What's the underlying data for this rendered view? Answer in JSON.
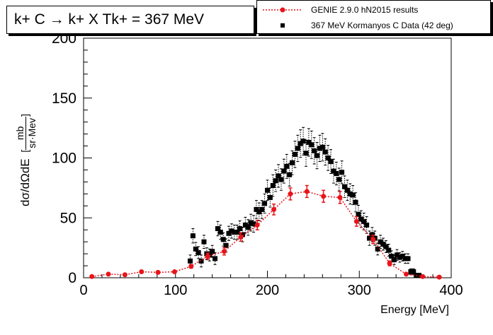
{
  "chart_data": {
    "type": "scatter",
    "title": "k+ C → k+ X Tk+ = 367 MeV",
    "xlabel": "Energy [MeV]",
    "ylabel": "dσ/dΩdE [mb/sr·Mev]",
    "xlim": [
      0,
      400
    ],
    "ylim": [
      0,
      200
    ],
    "x_ticks": [
      "0",
      "100",
      "200",
      "300",
      "400"
    ],
    "y_ticks": [
      "0",
      "50",
      "100",
      "150",
      "200"
    ],
    "grid": false,
    "legend_position": "top-right",
    "series": [
      {
        "name": "GENIE 2.9.0 hN2015 results",
        "color": "#e8141a",
        "style": "dotted-line-with-markers",
        "x": [
          9,
          27,
          45,
          63,
          81,
          99,
          117,
          135,
          153,
          171,
          189,
          207,
          225,
          243,
          261,
          279,
          297,
          315,
          333,
          351,
          369,
          387
        ],
        "y": [
          1,
          3,
          2.5,
          5,
          4.5,
          5,
          9.5,
          18,
          22,
          34,
          44,
          57,
          70,
          72,
          68,
          67,
          47,
          32,
          12,
          3,
          1,
          0.5
        ],
        "err": [
          0,
          0,
          0,
          0,
          0,
          0,
          1.5,
          2.5,
          3,
          3.5,
          4,
          4.5,
          5,
          5,
          5,
          5,
          4,
          3.5,
          2,
          1,
          0,
          0
        ]
      },
      {
        "name": "367 MeV Kormanyos C Data (42 deg)",
        "color": "#000000",
        "style": "square-markers",
        "x": [
          116,
          119,
          122,
          125,
          128,
          131,
          134,
          137,
          140,
          143,
          146,
          149,
          152,
          155,
          158,
          161,
          164,
          167,
          170,
          173,
          176,
          179,
          182,
          185,
          188,
          191,
          194,
          197,
          200,
          203,
          206,
          209,
          212,
          215,
          218,
          221,
          224,
          227,
          230,
          233,
          236,
          239,
          242,
          245,
          248,
          251,
          254,
          257,
          260,
          263,
          266,
          269,
          272,
          275,
          278,
          281,
          284,
          287,
          290,
          293,
          296,
          299,
          302,
          305,
          308,
          311,
          314,
          317,
          320,
          323,
          326,
          329,
          332,
          335,
          338,
          341,
          344,
          347,
          350,
          353,
          356,
          359,
          362,
          365
        ],
        "y": [
          14,
          35,
          24,
          21,
          14,
          30,
          20,
          19,
          22,
          16,
          41,
          38,
          32,
          27,
          37,
          39,
          38,
          38,
          41,
          36,
          44,
          42,
          46,
          45,
          57,
          55,
          57,
          62,
          73,
          67,
          77,
          81,
          85,
          82,
          89,
          93,
          86,
          96,
          103,
          108,
          112,
          114,
          104,
          113,
          111,
          106,
          102,
          108,
          109,
          105,
          100,
          97,
          89,
          87,
          82,
          88,
          76,
          73,
          70,
          69,
          63,
          53,
          49,
          47,
          44,
          33,
          36,
          33,
          24,
          30,
          28,
          26,
          23,
          18,
          15,
          19,
          17,
          18,
          16,
          16,
          5,
          5,
          2,
          2
        ],
        "err": [
          5,
          6,
          5.5,
          5,
          5,
          5.5,
          5,
          5,
          5,
          5,
          6,
          6,
          5.5,
          5.5,
          6,
          6,
          6,
          6,
          6.5,
          6,
          6.5,
          6.5,
          7,
          7,
          7.5,
          7.5,
          7.5,
          8,
          8.5,
          8,
          9,
          9,
          9.5,
          9,
          10,
          10,
          9.5,
          10,
          11,
          11,
          11.5,
          11.5,
          11,
          11.5,
          11.5,
          11,
          11,
          11,
          11.5,
          11,
          10.5,
          10,
          10,
          9.5,
          9.5,
          9.5,
          9,
          8.5,
          8.5,
          8,
          8,
          7.5,
          7,
          7,
          7,
          6,
          6,
          6,
          5,
          5.5,
          5,
          5,
          5,
          4.5,
          4,
          4.5,
          4,
          4,
          4,
          4,
          2.5,
          2.5,
          1.5,
          1.5
        ]
      }
    ]
  },
  "legend": {
    "genie_label": "GENIE 2.9.0 hN2015 results",
    "data_label": "367 MeV Kormanyos C Data (42 deg)"
  },
  "labels": {
    "title": "k+ C → k+ X Tk+ = 367 MeV",
    "x_axis": "Energy [MeV]",
    "y_axis_prefix": "dσ/dΩdE",
    "y_axis_unit_num": "mb",
    "y_axis_unit_den": "sr·Mev"
  }
}
